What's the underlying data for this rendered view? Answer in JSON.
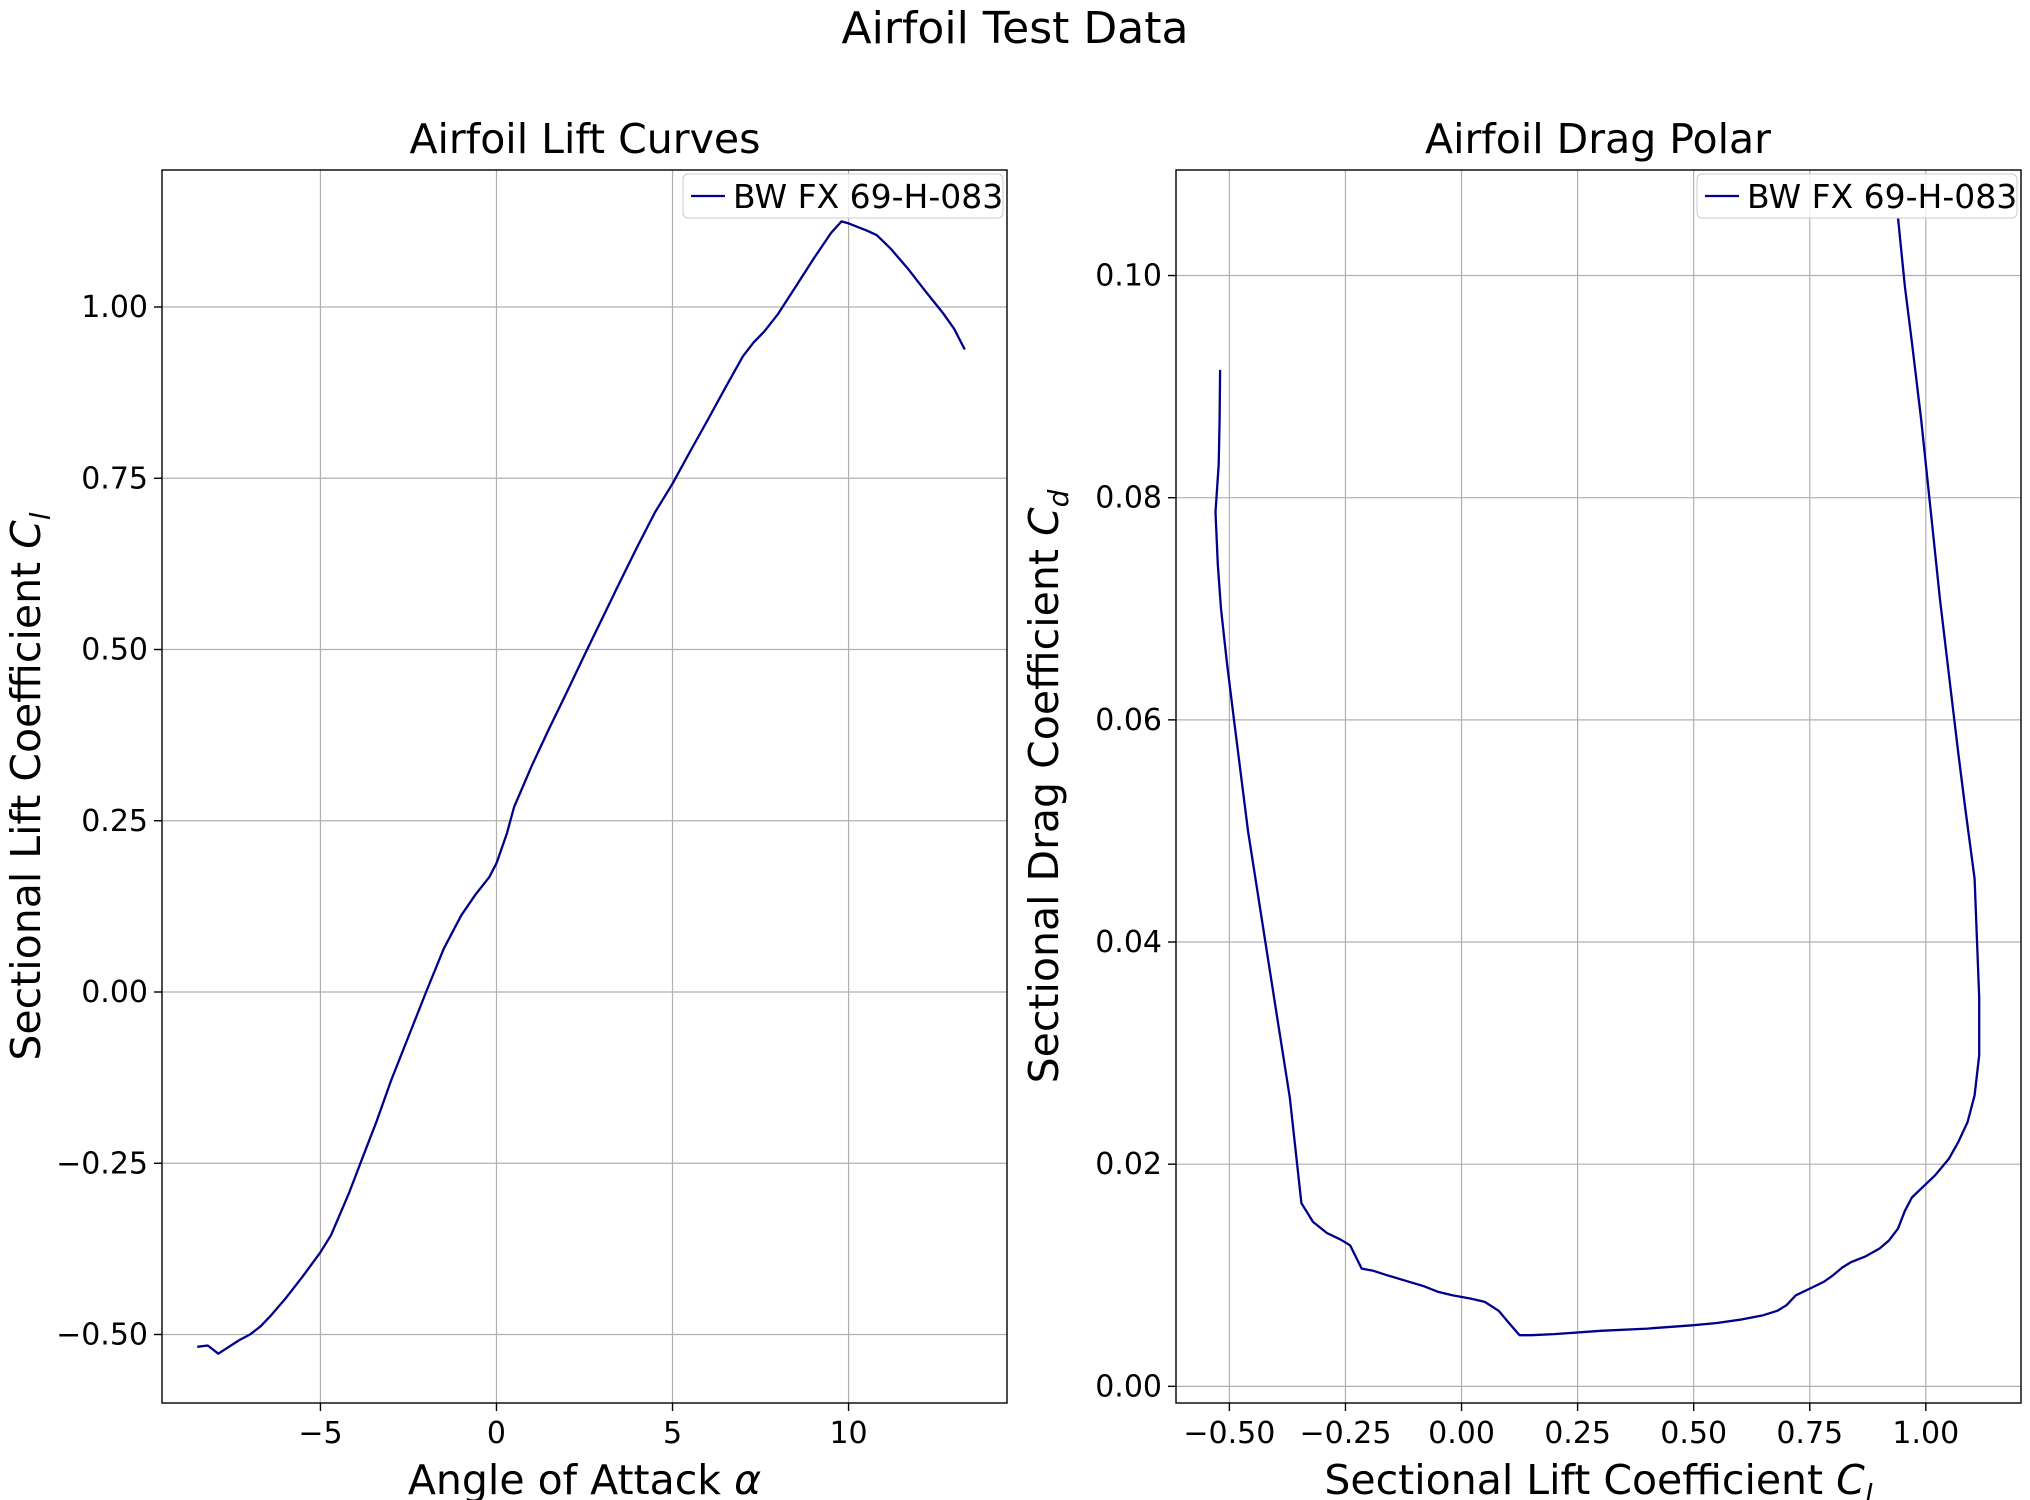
{
  "figure": {
    "title": "Airfoil Test Data"
  },
  "colors": {
    "series": "#00008b",
    "grid": "#b0b0b0",
    "axes": "#000000",
    "legend_border": "#cccccc"
  },
  "chart_data": [
    {
      "type": "line",
      "title": "Airfoil Lift Curves",
      "xlabel": "Angle of Attack",
      "xlabel_symbol": "α",
      "ylabel": "Sectional Lift Coefficient",
      "ylabel_symbol": "C",
      "ylabel_subscript": "l",
      "xlim": [
        -9.5,
        14.5
      ],
      "ylim": [
        -0.6,
        1.2
      ],
      "xticks": [
        -5,
        0,
        5,
        10
      ],
      "xtick_labels": [
        "−5",
        "0",
        "5",
        "10"
      ],
      "yticks": [
        -0.5,
        -0.25,
        0,
        0.25,
        0.5,
        0.75,
        1.0
      ],
      "ytick_labels": [
        "−0.50",
        "−0.25",
        "0.00",
        "0.25",
        "0.50",
        "0.75",
        "1.00"
      ],
      "grid": true,
      "legend": "top-right",
      "series": [
        {
          "name": "BW FX 69-H-083",
          "points": [
            [
              -8.5,
              -0.518
            ],
            [
              -8.2,
              -0.516
            ],
            [
              -7.9,
              -0.528
            ],
            [
              -7.6,
              -0.518
            ],
            [
              -7.3,
              -0.508
            ],
            [
              -7.0,
              -0.5
            ],
            [
              -6.7,
              -0.488
            ],
            [
              -6.4,
              -0.472
            ],
            [
              -6.0,
              -0.448
            ],
            [
              -5.5,
              -0.415
            ],
            [
              -5.0,
              -0.38
            ],
            [
              -4.7,
              -0.355
            ],
            [
              -4.2,
              -0.295
            ],
            [
              -3.7,
              -0.228
            ],
            [
              -3.4,
              -0.188
            ],
            [
              -3.0,
              -0.13
            ],
            [
              -2.5,
              -0.065
            ],
            [
              -2.0,
              0.0
            ],
            [
              -1.5,
              0.063
            ],
            [
              -1.0,
              0.112
            ],
            [
              -0.6,
              0.142
            ],
            [
              -0.2,
              0.168
            ],
            [
              0.0,
              0.188
            ],
            [
              0.3,
              0.232
            ],
            [
              0.5,
              0.27
            ],
            [
              0.75,
              0.3
            ],
            [
              1.0,
              0.33
            ],
            [
              1.5,
              0.385
            ],
            [
              2.0,
              0.438
            ],
            [
              2.5,
              0.492
            ],
            [
              3.0,
              0.545
            ],
            [
              3.5,
              0.598
            ],
            [
              4.0,
              0.65
            ],
            [
              4.5,
              0.7
            ],
            [
              5.0,
              0.742
            ],
            [
              5.5,
              0.789
            ],
            [
              6.0,
              0.835
            ],
            [
              6.5,
              0.882
            ],
            [
              7.0,
              0.928
            ],
            [
              7.3,
              0.948
            ],
            [
              7.6,
              0.964
            ],
            [
              8.0,
              0.99
            ],
            [
              8.5,
              1.03
            ],
            [
              9.0,
              1.07
            ],
            [
              9.5,
              1.108
            ],
            [
              9.8,
              1.125
            ],
            [
              10.0,
              1.122
            ],
            [
              10.5,
              1.112
            ],
            [
              10.8,
              1.105
            ],
            [
              11.2,
              1.085
            ],
            [
              11.7,
              1.055
            ],
            [
              12.2,
              1.022
            ],
            [
              12.7,
              0.99
            ],
            [
              13.0,
              0.968
            ],
            [
              13.2,
              0.948
            ],
            [
              13.3,
              0.938
            ]
          ]
        }
      ]
    },
    {
      "type": "line",
      "title": "Airfoil Drag Polar",
      "xlabel": "Sectional Lift Coefficient",
      "xlabel_symbol": "C",
      "xlabel_subscript": "l",
      "ylabel": "Sectional Drag Coefficient",
      "ylabel_symbol": "C",
      "ylabel_subscript": "d",
      "xlim": [
        -0.615,
        1.205
      ],
      "ylim": [
        -0.0015,
        0.1095
      ],
      "xticks": [
        -0.5,
        -0.25,
        0,
        0.25,
        0.5,
        0.75,
        1.0
      ],
      "xtick_labels": [
        "−0.50",
        "−0.25",
        "0.00",
        "0.25",
        "0.50",
        "0.75",
        "1.00"
      ],
      "yticks": [
        0,
        0.02,
        0.04,
        0.06,
        0.08,
        0.1
      ],
      "ytick_labels": [
        "0.00",
        "0.02",
        "0.04",
        "0.06",
        "0.08",
        "0.10"
      ],
      "grid": true,
      "legend": "top-right",
      "series": [
        {
          "name": "BW FX 69-H-083",
          "points": [
            [
              -0.52,
              0.0915
            ],
            [
              -0.521,
              0.087
            ],
            [
              -0.523,
              0.083
            ],
            [
              -0.53,
              0.0787
            ],
            [
              -0.525,
              0.074
            ],
            [
              -0.518,
              0.07
            ],
            [
              -0.505,
              0.065
            ],
            [
              -0.49,
              0.06
            ],
            [
              -0.475,
              0.055
            ],
            [
              -0.46,
              0.05
            ],
            [
              -0.43,
              0.042
            ],
            [
              -0.4,
              0.034
            ],
            [
              -0.37,
              0.026
            ],
            [
              -0.345,
              0.0165
            ],
            [
              -0.32,
              0.0148
            ],
            [
              -0.29,
              0.0138
            ],
            [
              -0.26,
              0.0132
            ],
            [
              -0.24,
              0.0127
            ],
            [
              -0.215,
              0.0106
            ],
            [
              -0.19,
              0.0104
            ],
            [
              -0.16,
              0.01
            ],
            [
              -0.12,
              0.0095
            ],
            [
              -0.08,
              0.009
            ],
            [
              -0.05,
              0.0085
            ],
            [
              -0.02,
              0.0082
            ],
            [
              0.02,
              0.0079
            ],
            [
              0.05,
              0.0076
            ],
            [
              0.08,
              0.0068
            ],
            [
              0.1,
              0.0058
            ],
            [
              0.125,
              0.0046
            ],
            [
              0.15,
              0.0046
            ],
            [
              0.2,
              0.0047
            ],
            [
              0.3,
              0.005
            ],
            [
              0.4,
              0.0052
            ],
            [
              0.5,
              0.0055
            ],
            [
              0.55,
              0.0057
            ],
            [
              0.6,
              0.006
            ],
            [
              0.65,
              0.0064
            ],
            [
              0.68,
              0.0068
            ],
            [
              0.7,
              0.0073
            ],
            [
              0.72,
              0.0082
            ],
            [
              0.75,
              0.0088
            ],
            [
              0.78,
              0.0094
            ],
            [
              0.8,
              0.01
            ],
            [
              0.82,
              0.0107
            ],
            [
              0.84,
              0.0112
            ],
            [
              0.87,
              0.0117
            ],
            [
              0.9,
              0.0124
            ],
            [
              0.92,
              0.0131
            ],
            [
              0.94,
              0.0142
            ],
            [
              0.955,
              0.0158
            ],
            [
              0.97,
              0.017
            ],
            [
              0.99,
              0.0178
            ],
            [
              1.02,
              0.019
            ],
            [
              1.05,
              0.0205
            ],
            [
              1.07,
              0.022
            ],
            [
              1.09,
              0.0238
            ],
            [
              1.105,
              0.0262
            ],
            [
              1.115,
              0.0298
            ],
            [
              1.115,
              0.035
            ],
            [
              1.105,
              0.0457
            ],
            [
              1.085,
              0.052
            ],
            [
              1.07,
              0.057
            ],
            [
              1.05,
              0.064
            ],
            [
              1.03,
              0.071
            ],
            [
              1.01,
              0.079
            ],
            [
              0.99,
              0.087
            ],
            [
              0.97,
              0.094
            ],
            [
              0.955,
              0.099
            ],
            [
              0.94,
              0.1052
            ]
          ]
        }
      ]
    }
  ]
}
